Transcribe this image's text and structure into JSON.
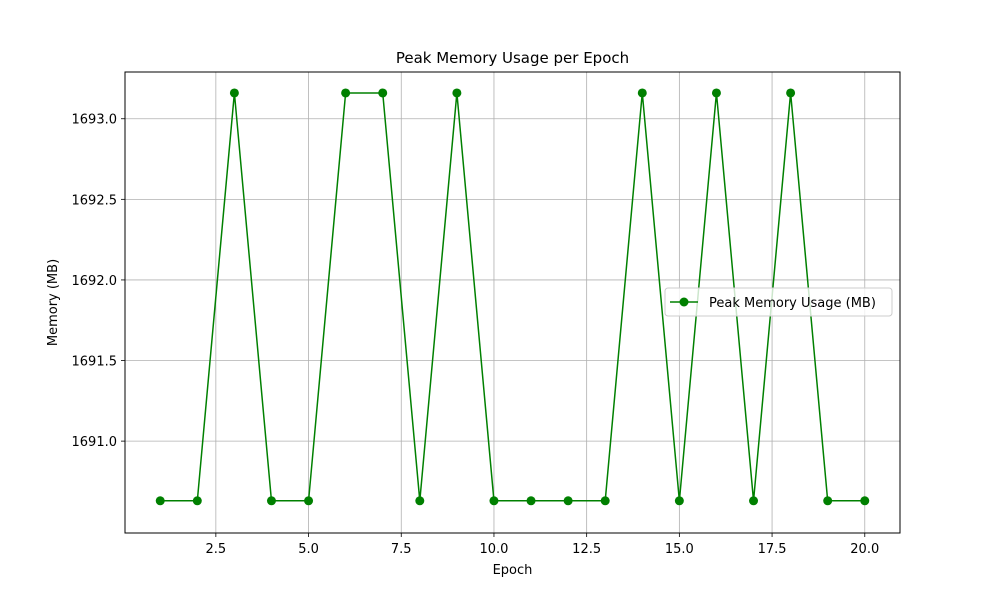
{
  "chart_data": {
    "type": "line",
    "title": "Peak Memory Usage per Epoch",
    "xlabel": "Epoch",
    "ylabel": "Memory (MB)",
    "xlim": [
      0.05,
      20.95
    ],
    "ylim": [
      1690.43,
      1693.29
    ],
    "xticks": [
      2.5,
      5.0,
      7.5,
      10.0,
      12.5,
      15.0,
      17.5,
      20.0
    ],
    "xtick_labels": [
      "2.5",
      "5.0",
      "7.5",
      "10.0",
      "12.5",
      "15.0",
      "17.5",
      "20.0"
    ],
    "yticks": [
      1691.0,
      1691.5,
      1692.0,
      1692.5,
      1693.0
    ],
    "ytick_labels": [
      "1691.0",
      "1691.5",
      "1692.0",
      "1692.5",
      "1693.0"
    ],
    "grid": true,
    "legend_position": "center-right",
    "series": [
      {
        "name": "Peak Memory Usage (MB)",
        "color": "#008000",
        "marker": "circle",
        "x": [
          1,
          2,
          3,
          4,
          5,
          6,
          7,
          8,
          9,
          10,
          11,
          12,
          13,
          14,
          15,
          16,
          17,
          18,
          19,
          20
        ],
        "y": [
          1690.63,
          1690.63,
          1693.16,
          1690.63,
          1690.63,
          1693.16,
          1693.16,
          1690.63,
          1693.16,
          1690.63,
          1690.63,
          1690.63,
          1690.63,
          1693.16,
          1690.63,
          1693.16,
          1690.63,
          1693.16,
          1690.63,
          1690.63
        ]
      }
    ]
  }
}
